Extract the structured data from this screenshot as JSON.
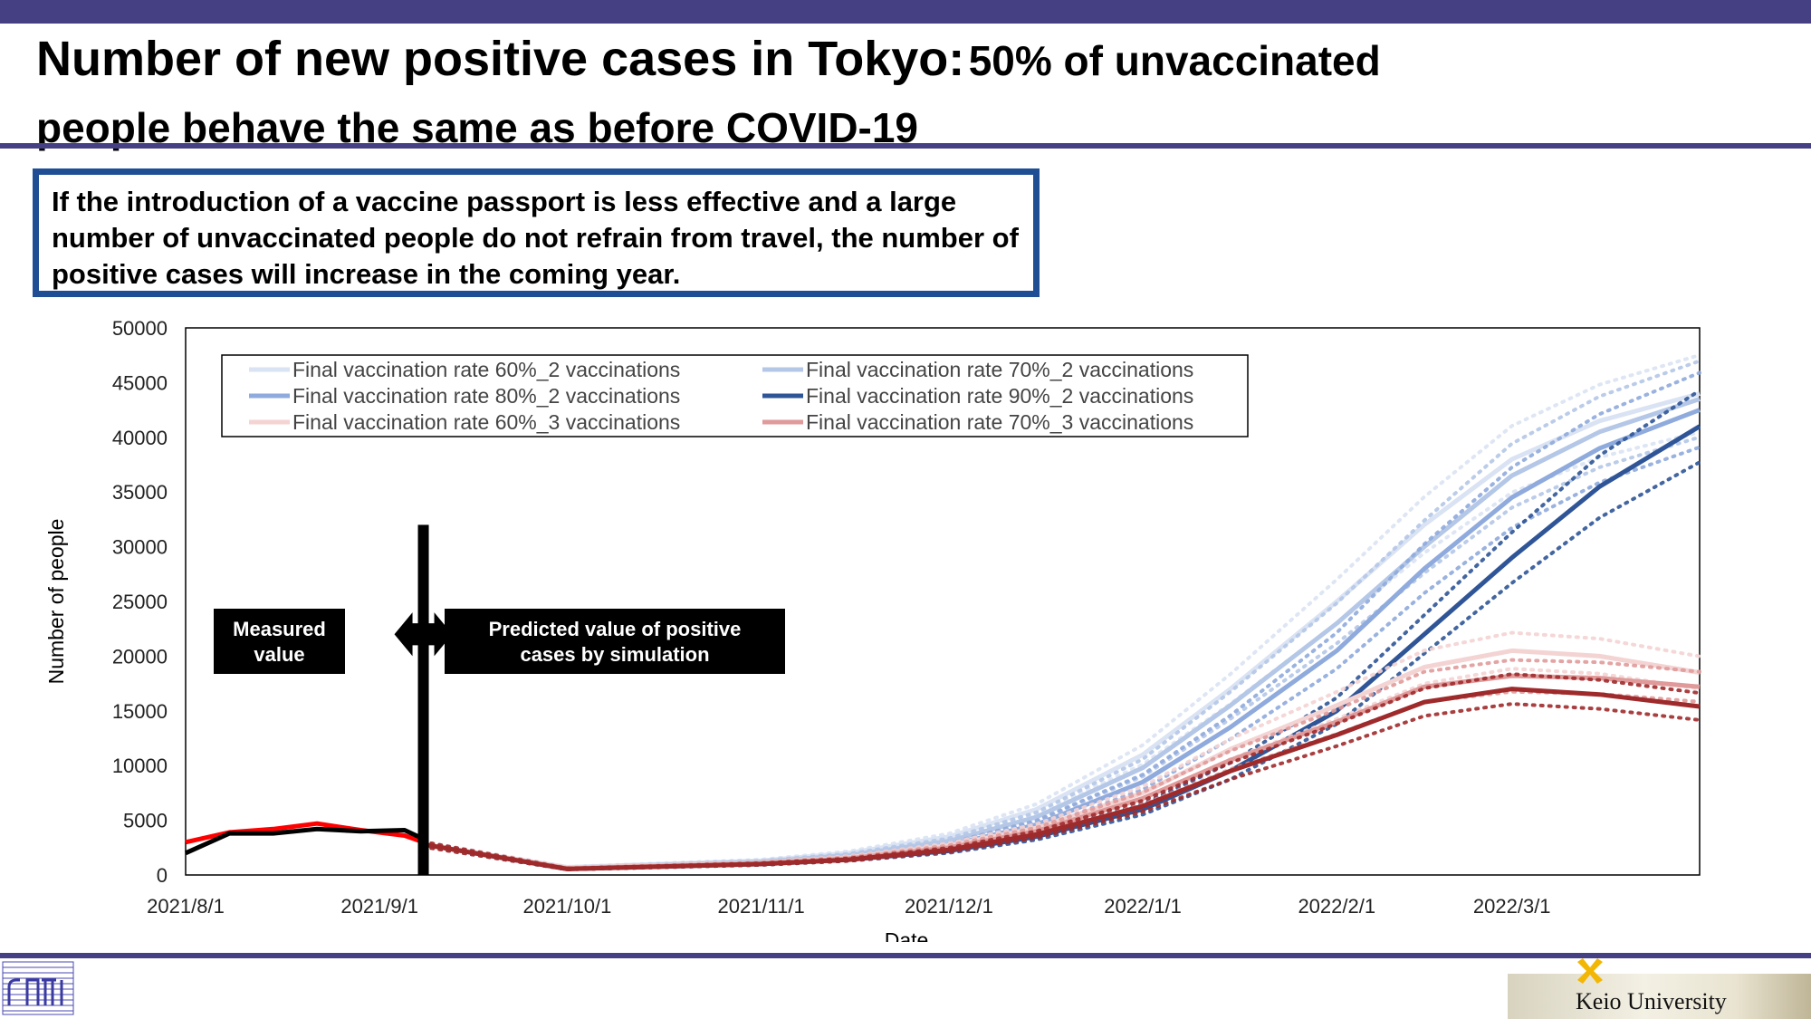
{
  "slide": {
    "title_main": "Number of new positive cases in Tokyo:",
    "title_rest": "50% of unvaccinated",
    "title_line2": "people behave the same as before COVID-19",
    "callout": "If the introduction of a vaccine passport is less effective and a large number of unvaccinated people do not refrain from travel, the number of positive cases will increase in the coming year.",
    "footer_brand": "Keio University"
  },
  "colors": {
    "band": "#453F84",
    "callout_border": "#1F4E95",
    "measured_red": "#FF0000",
    "measured_black": "#000000"
  },
  "chart_data": {
    "type": "line",
    "xlabel": "Date",
    "ylabel": "Number of people",
    "x_ticks": [
      "2021/8/1",
      "2021/9/1",
      "2021/10/1",
      "2021/11/1",
      "2021/12/1",
      "2022/1/1",
      "2022/2/1",
      "2022/3/1"
    ],
    "x_range": [
      "2021/8/1",
      "2022/3/31"
    ],
    "ylim": [
      0,
      50000
    ],
    "y_ticks": [
      0,
      5000,
      10000,
      15000,
      20000,
      25000,
      30000,
      35000,
      40000,
      45000,
      50000
    ],
    "grid": false,
    "legend_position": "top-left inside",
    "annotations": {
      "measured": "Measured value",
      "predicted": "Predicted value of positive cases by simulation",
      "divider_date": "2021/9/8"
    },
    "measured_series": [
      {
        "name": "",
        "color": "#FF0000",
        "x": [
          "2021/8/1",
          "2021/8/8",
          "2021/8/15",
          "2021/8/22",
          "2021/8/29",
          "2021/9/5",
          "2021/9/8"
        ],
        "y": [
          3000,
          3900,
          4200,
          4700,
          4100,
          3600,
          3000
        ]
      },
      {
        "name": "",
        "color": "#000000",
        "x": [
          "2021/8/1",
          "2021/8/8",
          "2021/8/15",
          "2021/8/22",
          "2021/8/29",
          "2021/9/5",
          "2021/9/8"
        ],
        "y": [
          2000,
          3800,
          3800,
          4200,
          4000,
          4100,
          3300
        ]
      }
    ],
    "series": [
      {
        "name": "Final vaccination rate 60%_2 vaccinations",
        "color": "#DAE3F3",
        "x": [
          "2021/9/8",
          "2021/10/1",
          "2021/11/1",
          "2021/11/15",
          "2021/12/1",
          "2021/12/15",
          "2022/1/1",
          "2022/1/15",
          "2022/2/1",
          "2022/2/15",
          "2022/3/1",
          "2022/3/15",
          "2022/3/31"
        ],
        "y": [
          2800,
          700,
          1300,
          2000,
          3500,
          6000,
          11000,
          17000,
          25000,
          32000,
          38000,
          41500,
          44000
        ]
      },
      {
        "name": "Final vaccination rate 70%_2 vaccinations",
        "color": "#B4C7E7",
        "x": [
          "2021/9/8",
          "2021/10/1",
          "2021/11/1",
          "2021/11/15",
          "2021/12/1",
          "2021/12/15",
          "2022/1/1",
          "2022/1/15",
          "2022/2/1",
          "2022/2/15",
          "2022/3/1",
          "2022/3/15",
          "2022/3/31"
        ],
        "y": [
          2800,
          650,
          1200,
          1800,
          3100,
          5300,
          9800,
          15500,
          23000,
          30000,
          36500,
          40500,
          43500
        ]
      },
      {
        "name": "Final vaccination rate 80%_2 vaccinations",
        "color": "#8FAADC",
        "x": [
          "2021/9/8",
          "2021/10/1",
          "2021/11/1",
          "2021/11/15",
          "2021/12/1",
          "2021/12/15",
          "2022/1/1",
          "2022/1/15",
          "2022/2/1",
          "2022/2/15",
          "2022/3/1",
          "2022/3/15",
          "2022/3/31"
        ],
        "y": [
          2800,
          600,
          1100,
          1600,
          2700,
          4600,
          8500,
          13500,
          20500,
          28000,
          34500,
          39000,
          42500
        ]
      },
      {
        "name": "Final vaccination rate 90%_2 vaccinations",
        "color": "#2F5597",
        "x": [
          "2021/9/8",
          "2021/10/1",
          "2021/11/1",
          "2021/11/15",
          "2021/12/1",
          "2021/12/15",
          "2022/1/1",
          "2022/1/15",
          "2022/2/1",
          "2022/2/15",
          "2022/3/1",
          "2022/3/15",
          "2022/3/31"
        ],
        "y": [
          2800,
          550,
          1000,
          1400,
          2200,
          3500,
          6000,
          9500,
          15000,
          22000,
          29000,
          35500,
          41000
        ]
      },
      {
        "name": "Final vaccination rate 60%_3 vaccinations",
        "color": "#F4D3D3",
        "x": [
          "2021/9/8",
          "2021/10/1",
          "2021/11/1",
          "2021/11/15",
          "2021/12/1",
          "2021/12/15",
          "2022/1/1",
          "2022/1/15",
          "2022/2/1",
          "2022/2/15",
          "2022/3/1",
          "2022/3/15",
          "2022/3/31"
        ],
        "y": [
          2800,
          650,
          1100,
          1600,
          2700,
          4300,
          7500,
          11500,
          15500,
          19000,
          20500,
          20000,
          18500
        ]
      },
      {
        "name": "Final vaccination rate 70%_3 vaccinations",
        "color": "#E09A9A",
        "x": [
          "2021/9/8",
          "2021/10/1",
          "2021/11/1",
          "2021/11/15",
          "2021/12/1",
          "2021/12/15",
          "2022/1/1",
          "2022/1/15",
          "2022/2/1",
          "2022/2/15",
          "2022/3/1",
          "2022/3/15",
          "2022/3/31"
        ],
        "y": [
          2800,
          600,
          1050,
          1500,
          2500,
          4000,
          7000,
          10500,
          14000,
          17200,
          18200,
          18000,
          17200
        ]
      },
      {
        "name": "",
        "color": "#9E2A2B",
        "x": [
          "2021/9/8",
          "2021/10/1",
          "2021/11/1",
          "2021/11/15",
          "2021/12/1",
          "2021/12/15",
          "2022/1/1",
          "2022/1/15",
          "2022/2/1",
          "2022/2/15",
          "2022/3/1",
          "2022/3/15",
          "2022/3/31"
        ],
        "y": [
          2800,
          550,
          1000,
          1400,
          2300,
          3700,
          6300,
          9500,
          12800,
          15800,
          17000,
          16500,
          15400
        ]
      }
    ]
  }
}
